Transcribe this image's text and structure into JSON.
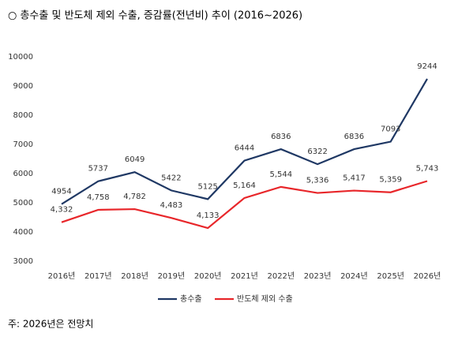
{
  "chart_data": {
    "type": "line",
    "title": "○ 총수출 및 반도체 제외 수출, 증감률(전년비) 추이 (2016~2026)",
    "categories": [
      "2016년",
      "2017년",
      "2018년",
      "2019년",
      "2020년",
      "2021년",
      "2022년",
      "2023년",
      "2024년",
      "2025년",
      "2026년"
    ],
    "series": [
      {
        "name": "총수출",
        "color": "#1f3864",
        "values": [
          4954,
          5737,
          6049,
          5422,
          5125,
          6444,
          6836,
          6322,
          6836,
          7093,
          9244
        ]
      },
      {
        "name": "반도체 제외 수출",
        "color": "#e8262a",
        "values": [
          4332,
          4758,
          4782,
          4483,
          4133,
          5164,
          5544,
          5336,
          5417,
          5359,
          5743
        ],
        "value_labels": [
          "4,332",
          "4,758",
          "4,782",
          "4,483",
          "4,133",
          "5,164",
          "5,544",
          "5,336",
          "5,417",
          "5,359",
          "5,743"
        ]
      }
    ],
    "ylim": [
      3000,
      10000
    ],
    "yticks": [
      3000,
      4000,
      5000,
      6000,
      7000,
      8000,
      9000,
      10000
    ],
    "grid": false,
    "legend": "bottom",
    "note": "주: 2026년은 전망치"
  }
}
